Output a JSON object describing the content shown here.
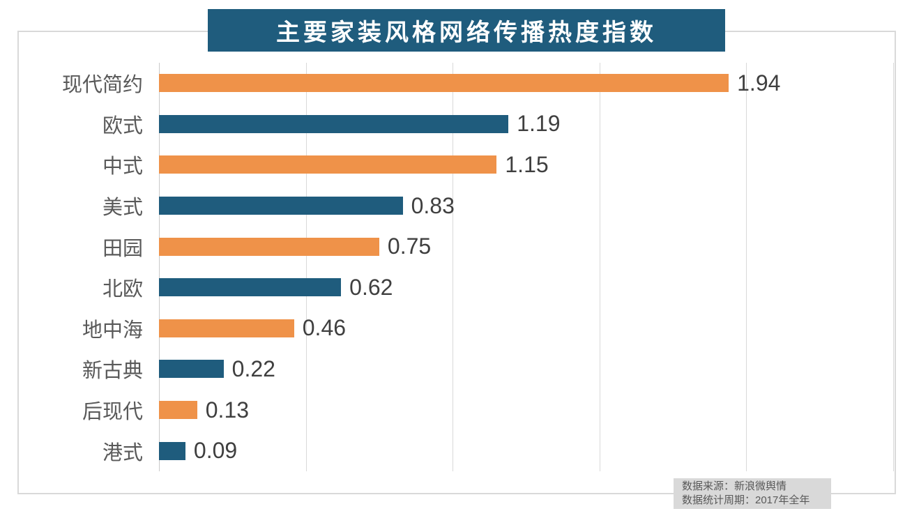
{
  "title": "主要家装风格网络传播热度指数",
  "colors": {
    "title_bg": "#1f5c7d",
    "title_text": "#ffffff",
    "bar_orange": "#ef9249",
    "bar_teal": "#1f5c7d",
    "grid": "#d9d9d9",
    "category_label": "#595959",
    "value_label": "#3f3f3f",
    "note_bg": "#d9d9d9",
    "note_text": "#595959"
  },
  "source_note": {
    "line1": "数据来源：新浪微舆情",
    "line2": "数据统计周期：2017年全年"
  },
  "chart_data": {
    "type": "bar",
    "orientation": "horizontal",
    "title": "主要家装风格网络传播热度指数",
    "categories": [
      "现代简约",
      "欧式",
      "中式",
      "美式",
      "田园",
      "北欧",
      "地中海",
      "新古典",
      "后现代",
      "港式"
    ],
    "values": [
      1.94,
      1.19,
      1.15,
      0.83,
      0.75,
      0.62,
      0.46,
      0.22,
      0.13,
      0.09
    ],
    "bar_colors_alternate": [
      "#ef9249",
      "#1f5c7d"
    ],
    "xlabel": "",
    "ylabel": "",
    "xlim": [
      0,
      2.5
    ],
    "grid_interval": 0.5,
    "grid": true,
    "value_labels": true,
    "legend": "none",
    "source": "数据来源：新浪微舆情",
    "period": "数据统计周期：2017年全年"
  }
}
